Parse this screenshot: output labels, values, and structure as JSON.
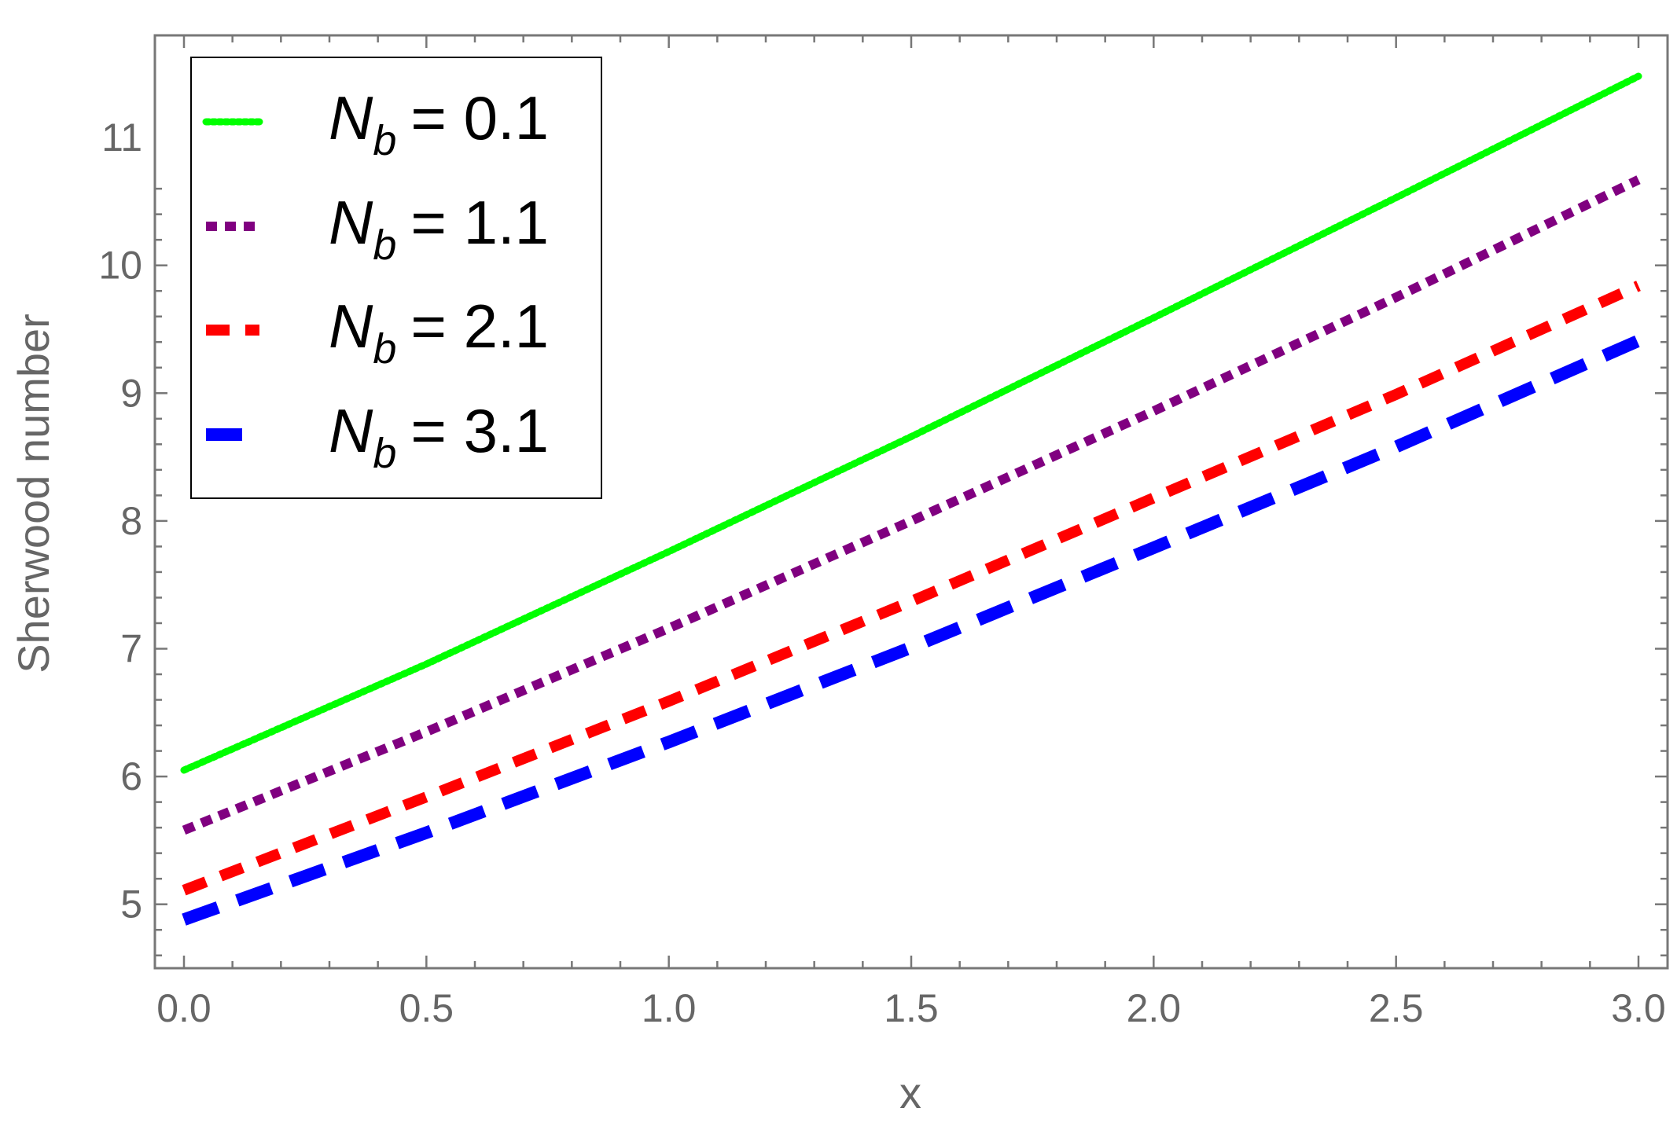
{
  "chart_data": {
    "type": "line",
    "xlabel": "x",
    "ylabel": "Sherwood number",
    "xlim": [
      -0.06,
      3.06
    ],
    "ylim": [
      4.5,
      11.8
    ],
    "x_ticks": [
      0.0,
      0.5,
      1.0,
      1.5,
      2.0,
      2.5,
      3.0
    ],
    "x_tick_labels": [
      "0.0",
      "0.5",
      "1.0",
      "1.5",
      "2.0",
      "2.5",
      "3.0"
    ],
    "y_ticks": [
      5,
      6,
      7,
      8,
      9,
      10,
      11
    ],
    "y_tick_labels": [
      "5",
      "6",
      "7",
      "8",
      "9",
      "10",
      "11"
    ],
    "grid": false,
    "legend_position": "top-left",
    "legend_symbol": "N",
    "legend_subscript": "b",
    "series": [
      {
        "name": "N_b = 0.1",
        "legend_value": "= 0.1",
        "color": "#00ff00",
        "style": "dotted",
        "x": [
          0,
          0.5,
          1.0,
          1.5,
          2.0,
          2.5,
          3.0
        ],
        "values": [
          6.05,
          6.88,
          7.76,
          8.66,
          9.59,
          10.53,
          11.48
        ]
      },
      {
        "name": "N_b = 1.1",
        "legend_value": "= 1.1",
        "color": "#800080",
        "style": "short-dash",
        "x": [
          0,
          0.5,
          1.0,
          1.5,
          2.0,
          2.5,
          3.0
        ],
        "values": [
          5.58,
          6.35,
          7.16,
          8.0,
          8.86,
          9.75,
          10.67
        ]
      },
      {
        "name": "N_b = 2.1",
        "legend_value": "= 2.1",
        "color": "#ff0000",
        "style": "medium-dash",
        "x": [
          0,
          0.5,
          1.0,
          1.5,
          2.0,
          2.5,
          3.0
        ],
        "values": [
          5.11,
          5.84,
          6.59,
          7.37,
          8.18,
          8.99,
          9.84
        ]
      },
      {
        "name": "N_b = 3.1",
        "legend_value": "= 3.1",
        "color": "#0000ff",
        "style": "long-dash",
        "x": [
          0,
          0.5,
          1.0,
          1.5,
          2.0,
          2.5,
          3.0
        ],
        "values": [
          4.88,
          5.56,
          6.27,
          7.01,
          7.79,
          8.58,
          9.41
        ]
      }
    ]
  }
}
